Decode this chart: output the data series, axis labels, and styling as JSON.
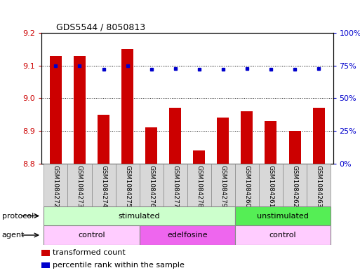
{
  "title": "GDS5544 / 8050813",
  "samples": [
    "GSM1084272",
    "GSM1084273",
    "GSM1084274",
    "GSM1084275",
    "GSM1084276",
    "GSM1084277",
    "GSM1084278",
    "GSM1084279",
    "GSM1084260",
    "GSM1084261",
    "GSM1084262",
    "GSM1084263"
  ],
  "bar_values": [
    9.13,
    9.13,
    8.95,
    9.15,
    8.91,
    8.97,
    8.84,
    8.94,
    8.96,
    8.93,
    8.9,
    8.97
  ],
  "bar_bottom": 8.8,
  "dot_values": [
    75,
    75,
    72,
    75,
    72,
    73,
    72,
    72,
    73,
    72,
    72,
    73
  ],
  "ylim_left": [
    8.8,
    9.2
  ],
  "ylim_right": [
    0,
    100
  ],
  "yticks_left": [
    8.8,
    8.9,
    9.0,
    9.1,
    9.2
  ],
  "yticks_right": [
    0,
    25,
    50,
    75,
    100
  ],
  "bar_color": "#cc0000",
  "dot_color": "#0000cc",
  "grid_color": "#000000",
  "protocol_stimulated_color": "#ccffcc",
  "protocol_unstimulated_color": "#55ee55",
  "agent_control_color": "#ffccff",
  "agent_edelfosine_color": "#ee66ee",
  "protocol_label": "protocol",
  "agent_label": "agent",
  "protocol_groups": [
    {
      "label": "stimulated",
      "start": 0,
      "end": 8
    },
    {
      "label": "unstimulated",
      "start": 8,
      "end": 12
    }
  ],
  "agent_groups": [
    {
      "label": "control",
      "start": 0,
      "end": 4
    },
    {
      "label": "edelfosine",
      "start": 4,
      "end": 8
    },
    {
      "label": "control",
      "start": 8,
      "end": 12
    }
  ],
  "legend_items": [
    {
      "label": "transformed count",
      "color": "#cc0000"
    },
    {
      "label": "percentile rank within the sample",
      "color": "#0000cc"
    }
  ],
  "bg_color": "#ffffff",
  "tick_label_color_left": "#cc0000",
  "tick_label_color_right": "#0000cc",
  "bar_width": 0.5,
  "sample_bg_color": "#d8d8d8",
  "border_color": "#888888"
}
